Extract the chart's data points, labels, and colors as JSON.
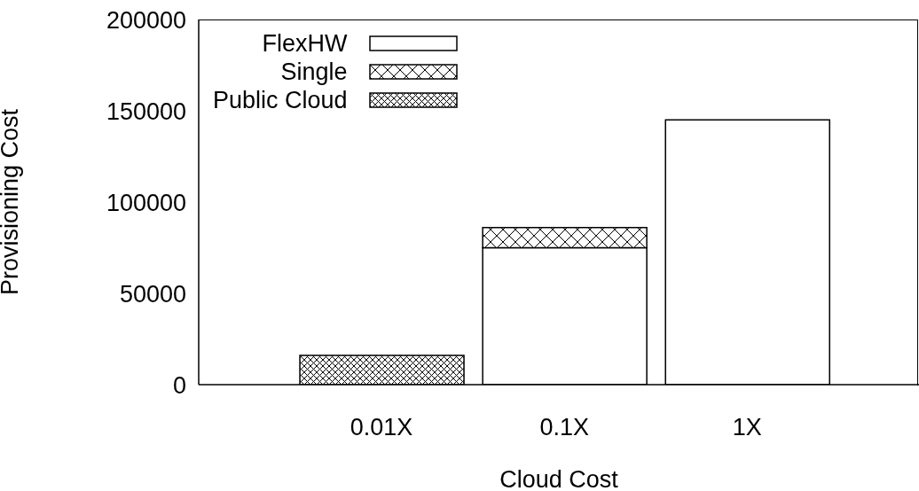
{
  "chart_data": {
    "type": "bar",
    "stacked": true,
    "xlabel": "Cloud Cost",
    "ylabel": "Provisioning Cost",
    "categories": [
      "0.01X",
      "0.1X",
      "1X"
    ],
    "series": [
      {
        "name": "FlexHW",
        "color": "#ffffff",
        "values": [
          0,
          75000,
          145000
        ]
      },
      {
        "name": "Single",
        "color": "#000000",
        "values": [
          0,
          11000,
          0
        ]
      },
      {
        "name": "Public Cloud",
        "color": "#000000",
        "values": [
          16000,
          0,
          0
        ]
      }
    ],
    "ylim": [
      0,
      200000
    ],
    "yticks": [
      0,
      50000,
      100000,
      150000,
      200000
    ],
    "legend": "top left"
  }
}
